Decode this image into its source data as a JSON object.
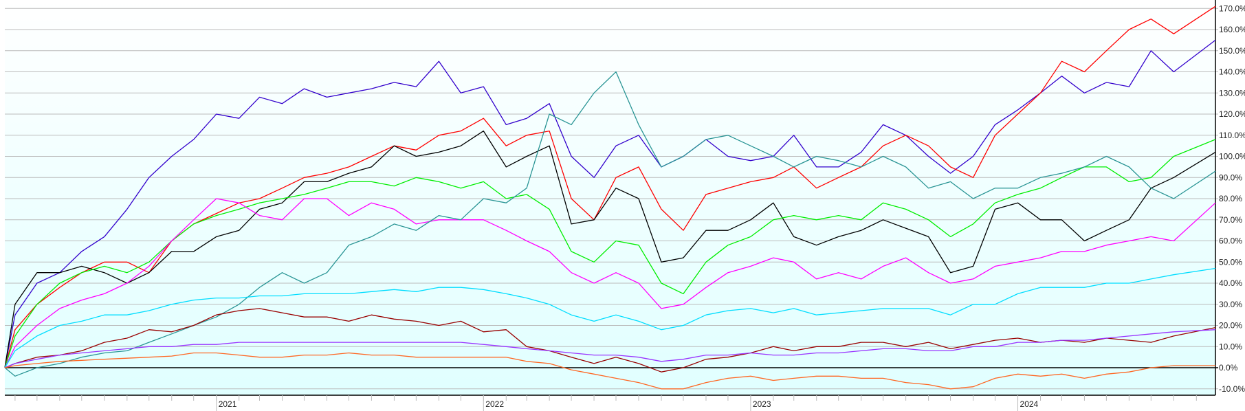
{
  "chart_data": {
    "type": "line",
    "title": "",
    "xlabel": "",
    "ylabel": "",
    "x_axis": "date",
    "ylim": [
      -13,
      174
    ],
    "xlim": [
      "2020-03-18",
      "2024-09-27"
    ],
    "grid": true,
    "legend": "none",
    "background": {
      "top": "#ffffff",
      "bottom": "#e0ffff"
    },
    "y_ticks": [
      -10,
      0,
      10,
      20,
      30,
      40,
      50,
      60,
      70,
      80,
      90,
      100,
      110,
      120,
      130,
      140,
      150,
      160,
      170
    ],
    "y_tick_labels": [
      "-10.0%",
      "0.0%",
      "10.0%",
      "20.0%",
      "30.0%",
      "40.0%",
      "50.0%",
      "60.0%",
      "70.0%",
      "80.0%",
      "90.0%",
      "100.0%",
      "110.0%",
      "120.0%",
      "130.0%",
      "140.0%",
      "150.0%",
      "160.0%",
      "170.0%"
    ],
    "x_ticks": [
      {
        "date": "2021-01-01",
        "label": "2021"
      },
      {
        "date": "2022-01-01",
        "label": "2022"
      },
      {
        "date": "2023-01-01",
        "label": "2023"
      },
      {
        "date": "2024-01-01",
        "label": "2024"
      }
    ],
    "x": [
      "2020-03-18",
      "2020-04-01",
      "2020-05-01",
      "2020-06-01",
      "2020-07-01",
      "2020-08-01",
      "2020-09-01",
      "2020-10-01",
      "2020-11-01",
      "2020-12-01",
      "2021-01-01",
      "2021-02-01",
      "2021-03-01",
      "2021-04-01",
      "2021-05-01",
      "2021-06-01",
      "2021-07-01",
      "2021-08-01",
      "2021-09-01",
      "2021-10-01",
      "2021-11-01",
      "2021-12-01",
      "2022-01-01",
      "2022-02-01",
      "2022-03-01",
      "2022-04-01",
      "2022-05-01",
      "2022-06-01",
      "2022-07-01",
      "2022-08-01",
      "2022-09-01",
      "2022-10-01",
      "2022-11-01",
      "2022-12-01",
      "2023-01-01",
      "2023-02-01",
      "2023-03-01",
      "2023-04-01",
      "2023-05-01",
      "2023-06-01",
      "2023-07-01",
      "2023-08-01",
      "2023-09-01",
      "2023-10-01",
      "2023-11-01",
      "2023-12-01",
      "2024-01-01",
      "2024-02-01",
      "2024-03-01",
      "2024-04-01",
      "2024-05-01",
      "2024-06-01",
      "2024-07-01",
      "2024-08-01",
      "2024-09-27"
    ],
    "series": [
      {
        "color": "#3300cc",
        "values": [
          0,
          25,
          40,
          45,
          55,
          62,
          75,
          90,
          100,
          108,
          120,
          118,
          128,
          125,
          132,
          128,
          130,
          132,
          135,
          133,
          145,
          130,
          133,
          115,
          118,
          125,
          100,
          90,
          105,
          110,
          95,
          100,
          108,
          100,
          98,
          100,
          110,
          95,
          95,
          102,
          115,
          110,
          100,
          92,
          100,
          115,
          122,
          130,
          138,
          130,
          135,
          133,
          150,
          140,
          155
        ]
      },
      {
        "color": "#ff0000",
        "values": [
          0,
          18,
          30,
          38,
          45,
          50,
          50,
          45,
          60,
          68,
          73,
          78,
          80,
          85,
          90,
          92,
          95,
          100,
          105,
          103,
          110,
          112,
          118,
          105,
          110,
          112,
          80,
          70,
          90,
          95,
          75,
          65,
          82,
          85,
          88,
          90,
          95,
          85,
          90,
          95,
          105,
          110,
          105,
          95,
          90,
          110,
          120,
          130,
          145,
          140,
          150,
          160,
          165,
          158,
          171
        ]
      },
      {
        "color": "#000000",
        "values": [
          0,
          30,
          45,
          45,
          48,
          45,
          40,
          45,
          55,
          55,
          62,
          65,
          75,
          78,
          88,
          88,
          92,
          95,
          105,
          100,
          102,
          105,
          112,
          95,
          100,
          105,
          68,
          70,
          85,
          80,
          50,
          52,
          65,
          65,
          70,
          78,
          62,
          58,
          62,
          65,
          70,
          66,
          62,
          45,
          48,
          75,
          78,
          70,
          70,
          60,
          65,
          70,
          85,
          90,
          102
        ]
      },
      {
        "color": "#00ee00",
        "values": [
          0,
          15,
          30,
          40,
          45,
          48,
          45,
          50,
          60,
          68,
          72,
          75,
          78,
          80,
          82,
          85,
          88,
          88,
          86,
          90,
          88,
          85,
          88,
          80,
          82,
          75,
          55,
          50,
          60,
          58,
          40,
          35,
          50,
          58,
          62,
          70,
          72,
          70,
          72,
          70,
          78,
          75,
          70,
          62,
          68,
          78,
          82,
          85,
          90,
          95,
          95,
          88,
          90,
          100,
          108
        ]
      },
      {
        "color": "#ff00ff",
        "values": [
          0,
          10,
          20,
          28,
          32,
          35,
          40,
          48,
          60,
          70,
          80,
          78,
          72,
          70,
          80,
          80,
          72,
          78,
          75,
          68,
          70,
          70,
          70,
          65,
          60,
          55,
          45,
          40,
          45,
          40,
          28,
          30,
          38,
          45,
          48,
          52,
          50,
          42,
          45,
          42,
          48,
          52,
          45,
          40,
          42,
          48,
          50,
          52,
          55,
          55,
          58,
          60,
          62,
          60,
          78
        ]
      },
      {
        "color": "#2a9595",
        "values": [
          0,
          -4,
          0,
          2,
          5,
          7,
          8,
          12,
          16,
          20,
          24,
          30,
          38,
          45,
          40,
          45,
          58,
          62,
          68,
          65,
          72,
          70,
          80,
          78,
          85,
          120,
          115,
          130,
          140,
          115,
          95,
          100,
          108,
          110,
          105,
          100,
          95,
          100,
          98,
          95,
          100,
          95,
          85,
          88,
          80,
          85,
          85,
          90,
          92,
          95,
          100,
          95,
          85,
          80,
          93
        ]
      },
      {
        "color": "#00ddff",
        "values": [
          0,
          8,
          15,
          20,
          22,
          25,
          25,
          27,
          30,
          32,
          33,
          33,
          34,
          34,
          35,
          35,
          35,
          36,
          37,
          36,
          38,
          38,
          37,
          35,
          33,
          30,
          25,
          22,
          25,
          22,
          18,
          20,
          25,
          27,
          28,
          26,
          28,
          25,
          26,
          27,
          28,
          28,
          28,
          25,
          30,
          30,
          35,
          38,
          38,
          38,
          40,
          40,
          42,
          44,
          47
        ]
      },
      {
        "color": "#990000",
        "values": [
          0,
          2,
          5,
          6,
          8,
          12,
          14,
          18,
          17,
          20,
          25,
          27,
          28,
          26,
          24,
          24,
          22,
          25,
          23,
          22,
          20,
          22,
          17,
          18,
          10,
          8,
          5,
          2,
          5,
          2,
          -2,
          0,
          4,
          5,
          7,
          10,
          8,
          10,
          10,
          12,
          12,
          10,
          12,
          9,
          11,
          13,
          14,
          12,
          13,
          12,
          14,
          13,
          12,
          15,
          19
        ]
      },
      {
        "color": "#9933ff",
        "values": [
          0,
          2,
          4,
          6,
          7,
          8,
          9,
          10,
          10,
          11,
          11,
          12,
          12,
          12,
          12,
          12,
          12,
          12,
          12,
          12,
          12,
          12,
          11,
          10,
          9,
          8,
          7,
          6,
          6,
          5,
          3,
          4,
          6,
          6,
          7,
          6,
          6,
          7,
          7,
          8,
          9,
          9,
          8,
          8,
          10,
          10,
          12,
          12,
          13,
          13,
          14,
          15,
          16,
          17,
          18
        ]
      },
      {
        "color": "#ff6622",
        "values": [
          0,
          1,
          2,
          3,
          3.5,
          4,
          4.5,
          5,
          5.5,
          7,
          7,
          6,
          5,
          5,
          6,
          6,
          7,
          6,
          6,
          5,
          5,
          5,
          5,
          5,
          3,
          2,
          -1,
          -3,
          -5,
          -7,
          -10,
          -10,
          -7,
          -5,
          -4,
          -6,
          -5,
          -4,
          -4,
          -5,
          -5,
          -7,
          -8,
          -10,
          -9,
          -5,
          -3,
          -4,
          -3,
          -5,
          -3,
          -2,
          0,
          1,
          1
        ]
      }
    ]
  }
}
